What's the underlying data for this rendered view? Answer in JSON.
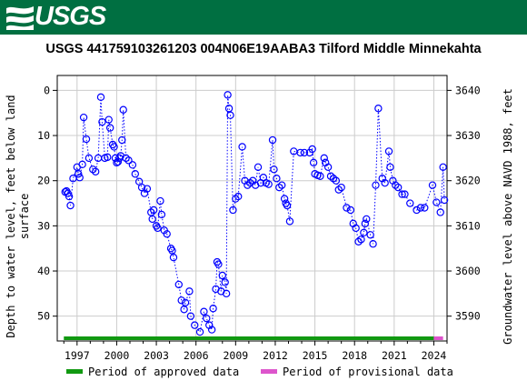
{
  "header": {
    "agency": "USGS",
    "logo_icon": "usgs-wave-logo-icon"
  },
  "chart_data": {
    "type": "scatter",
    "title": "USGS 441759103261203 004N06E19AABA3 Tilford Middle Minnekahta",
    "ylabel_left": [
      "Depth to water level, feet below land",
      "surface"
    ],
    "ylabel_right": "Groundwater level above NAVD 1988, feet",
    "xlabel": "",
    "x_ticks": [
      "1997",
      "2000",
      "2003",
      "2006",
      "2009",
      "2012",
      "2015",
      "2018",
      "2021",
      "2024"
    ],
    "x_range": [
      1995.5,
      2025.0
    ],
    "y_left_range": [
      -3.3,
      55.5
    ],
    "y_left_ticks": [
      "0",
      "10",
      "20",
      "30",
      "40",
      "50"
    ],
    "y_right_ticks": [
      "3640",
      "3630",
      "3620",
      "3610",
      "3600",
      "3590"
    ],
    "y_right_range_offset": 3640.0,
    "grid": true,
    "marker_color": "#0000ff",
    "line_style": "dotted",
    "series": [
      {
        "points": [
          [
            1996.1,
            22.5
          ],
          [
            1996.2,
            22.3
          ],
          [
            1996.3,
            22.8
          ],
          [
            1996.4,
            23.5
          ],
          [
            1996.5,
            25.5
          ],
          [
            1996.7,
            19.5
          ],
          [
            1997.0,
            17.0
          ],
          [
            1997.1,
            18.5
          ],
          [
            1997.2,
            19.3
          ],
          [
            1997.4,
            16.4
          ],
          [
            1997.5,
            6.0
          ],
          [
            1997.7,
            10.8
          ],
          [
            1997.9,
            15.0
          ],
          [
            1998.2,
            17.5
          ],
          [
            1998.4,
            18.0
          ],
          [
            1998.6,
            15.0
          ],
          [
            1998.8,
            1.5
          ],
          [
            1998.9,
            7.0
          ],
          [
            1999.1,
            15.0
          ],
          [
            1999.3,
            14.8
          ],
          [
            1999.4,
            6.5
          ],
          [
            1999.5,
            8.3
          ],
          [
            1999.7,
            12.0
          ],
          [
            1999.8,
            12.5
          ],
          [
            1999.9,
            15.0
          ],
          [
            2000.0,
            16.0
          ],
          [
            2000.1,
            15.8
          ],
          [
            2000.2,
            15.0
          ],
          [
            2000.3,
            14.5
          ],
          [
            2000.4,
            11.0
          ],
          [
            2000.5,
            4.3
          ],
          [
            2000.7,
            15.0
          ],
          [
            2000.9,
            15.5
          ],
          [
            2001.2,
            16.5
          ],
          [
            2001.4,
            18.5
          ],
          [
            2001.7,
            20.2
          ],
          [
            2001.9,
            21.5
          ],
          [
            2002.1,
            22.8
          ],
          [
            2002.3,
            21.8
          ],
          [
            2002.6,
            27.0
          ],
          [
            2002.8,
            26.5
          ],
          [
            2002.7,
            28.5
          ],
          [
            2003.0,
            30.0
          ],
          [
            2003.1,
            30.5
          ],
          [
            2003.3,
            24.5
          ],
          [
            2003.4,
            27.5
          ],
          [
            2003.6,
            31.0
          ],
          [
            2003.8,
            31.8
          ],
          [
            2004.1,
            35.0
          ],
          [
            2004.2,
            35.5
          ],
          [
            2004.3,
            37.0
          ],
          [
            2004.7,
            43.0
          ],
          [
            2004.9,
            46.5
          ],
          [
            2005.1,
            48.5
          ],
          [
            2005.2,
            47.0
          ],
          [
            2005.5,
            44.5
          ],
          [
            2005.6,
            50.0
          ],
          [
            2005.9,
            52.0
          ],
          [
            2006.3,
            53.5
          ],
          [
            2006.6,
            49.0
          ],
          [
            2006.8,
            50.5
          ],
          [
            2007.0,
            52.0
          ],
          [
            2007.2,
            53.0
          ],
          [
            2007.3,
            48.3
          ],
          [
            2007.5,
            44.0
          ],
          [
            2007.6,
            38.0
          ],
          [
            2007.7,
            38.5
          ],
          [
            2007.9,
            44.5
          ],
          [
            2008.0,
            41.0
          ],
          [
            2008.2,
            42.5
          ],
          [
            2008.3,
            45.0
          ],
          [
            2008.4,
            1.0
          ],
          [
            2008.5,
            4.0
          ],
          [
            2008.6,
            5.5
          ],
          [
            2008.8,
            26.5
          ],
          [
            2009.0,
            24.0
          ],
          [
            2009.2,
            23.5
          ],
          [
            2009.5,
            12.5
          ],
          [
            2009.7,
            20.0
          ],
          [
            2009.9,
            21.0
          ],
          [
            2010.1,
            20.5
          ],
          [
            2010.3,
            20.0
          ],
          [
            2010.5,
            21.0
          ],
          [
            2010.7,
            17.0
          ],
          [
            2010.9,
            20.5
          ],
          [
            2011.1,
            19.3
          ],
          [
            2011.3,
            20.5
          ],
          [
            2011.5,
            20.8
          ],
          [
            2011.8,
            11.0
          ],
          [
            2011.9,
            17.5
          ],
          [
            2012.1,
            19.5
          ],
          [
            2012.3,
            21.5
          ],
          [
            2012.5,
            21.0
          ],
          [
            2012.7,
            24.0
          ],
          [
            2012.8,
            25.0
          ],
          [
            2012.9,
            25.5
          ],
          [
            2013.1,
            29.0
          ],
          [
            2013.4,
            13.5
          ],
          [
            2013.9,
            13.8
          ],
          [
            2014.2,
            13.8
          ],
          [
            2014.6,
            13.8
          ],
          [
            2014.8,
            13.0
          ],
          [
            2014.9,
            16.0
          ],
          [
            2015.0,
            18.5
          ],
          [
            2015.2,
            18.8
          ],
          [
            2015.4,
            19.0
          ],
          [
            2015.7,
            15.0
          ],
          [
            2015.8,
            16.0
          ],
          [
            2016.0,
            17.0
          ],
          [
            2016.2,
            19.0
          ],
          [
            2016.4,
            19.5
          ],
          [
            2016.6,
            20.0
          ],
          [
            2016.8,
            22.0
          ],
          [
            2017.0,
            21.5
          ],
          [
            2017.4,
            26.0
          ],
          [
            2017.7,
            26.5
          ],
          [
            2017.9,
            29.5
          ],
          [
            2018.1,
            30.5
          ],
          [
            2018.3,
            33.5
          ],
          [
            2018.5,
            33.0
          ],
          [
            2018.7,
            31.5
          ],
          [
            2018.8,
            29.5
          ],
          [
            2018.9,
            28.5
          ],
          [
            2019.2,
            32.0
          ],
          [
            2019.4,
            34.0
          ],
          [
            2019.6,
            21.0
          ],
          [
            2019.8,
            4.0
          ],
          [
            2020.1,
            19.5
          ],
          [
            2020.3,
            20.5
          ],
          [
            2020.6,
            13.5
          ],
          [
            2020.7,
            17.0
          ],
          [
            2020.9,
            20.0
          ],
          [
            2021.1,
            21.0
          ],
          [
            2021.3,
            21.5
          ],
          [
            2021.6,
            23.0
          ],
          [
            2021.8,
            23.0
          ],
          [
            2022.2,
            25.0
          ],
          [
            2022.7,
            26.5
          ],
          [
            2023.0,
            26.0
          ],
          [
            2023.3,
            26.0
          ],
          [
            2023.9,
            21.0
          ],
          [
            2024.2,
            24.8
          ],
          [
            2024.5,
            27.0
          ],
          [
            2024.7,
            17.0
          ],
          [
            2024.8,
            24.3
          ]
        ]
      }
    ],
    "legend": {
      "placement": "bottom",
      "items": [
        {
          "label": "Period of approved data",
          "color": "#119911"
        },
        {
          "label": "Period of provisional data",
          "color": "#dd55cc"
        }
      ]
    },
    "approved_range": [
      1996.0,
      2024.0
    ],
    "provisional_range": [
      2024.0,
      2024.7
    ]
  }
}
